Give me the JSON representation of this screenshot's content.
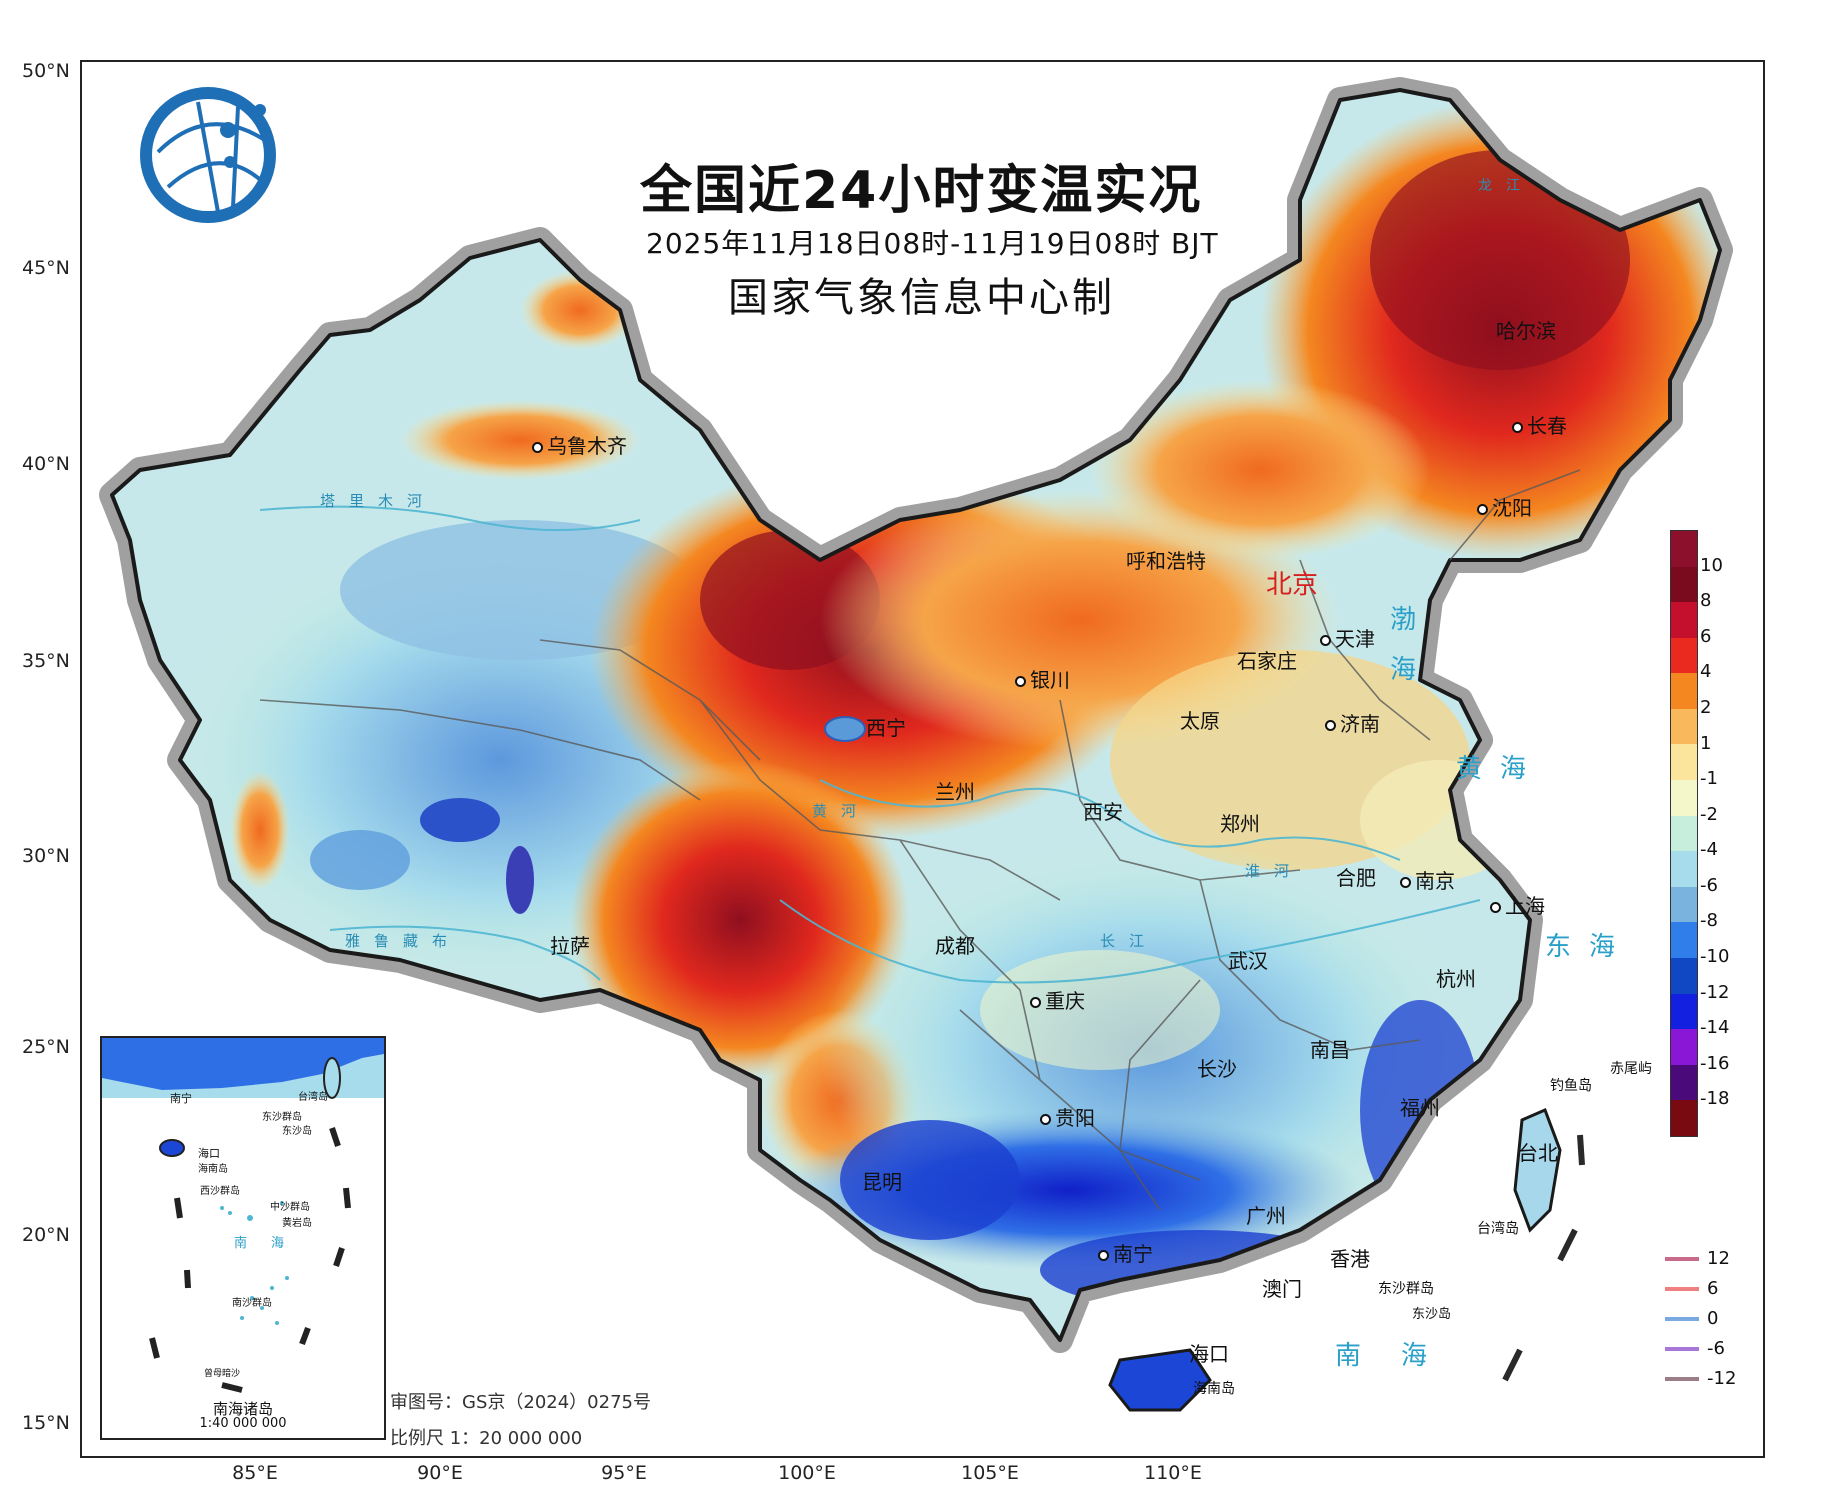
{
  "map": {
    "title": "全国近24小时变温实况",
    "subtitle": "2025年11月18日08时-11月19日08时 BJT",
    "producer": "国家气象信息中心制",
    "latitude_labels": [
      "50°N",
      "45°N",
      "40°N",
      "35°N",
      "30°N",
      "25°N",
      "20°N",
      "15°N"
    ],
    "longitude_labels": [
      "85°E",
      "90°E",
      "95°E",
      "100°E",
      "105°E",
      "110°E"
    ],
    "cities": [
      {
        "name": "乌鲁木齐"
      },
      {
        "name": "哈尔滨"
      },
      {
        "name": "长春"
      },
      {
        "name": "沈阳"
      },
      {
        "name": "呼和浩特"
      },
      {
        "name": "北京"
      },
      {
        "name": "天津"
      },
      {
        "name": "银川"
      },
      {
        "name": "石家庄"
      },
      {
        "name": "太原"
      },
      {
        "name": "济南"
      },
      {
        "name": "西宁"
      },
      {
        "name": "兰州"
      },
      {
        "name": "西安"
      },
      {
        "name": "郑州"
      },
      {
        "name": "合肥"
      },
      {
        "name": "南京"
      },
      {
        "name": "上海"
      },
      {
        "name": "拉萨"
      },
      {
        "name": "成都"
      },
      {
        "name": "武汉"
      },
      {
        "name": "杭州"
      },
      {
        "name": "重庆"
      },
      {
        "name": "长沙"
      },
      {
        "name": "南昌"
      },
      {
        "name": "贵阳"
      },
      {
        "name": "福州"
      },
      {
        "name": "台北"
      },
      {
        "name": "昆明"
      },
      {
        "name": "南宁"
      },
      {
        "name": "广州"
      },
      {
        "name": "香港"
      },
      {
        "name": "澳门"
      },
      {
        "name": "海口"
      }
    ],
    "sea_labels": [
      "渤海",
      "黄海",
      "东海",
      "南海"
    ],
    "island_labels": [
      "钓鱼岛",
      "赤尾屿",
      "台湾岛",
      "东沙群岛",
      "东沙岛",
      "海南岛"
    ],
    "river_labels": [
      "塔里木河",
      "雅鲁藏布",
      "黄河",
      "长江",
      "淮河",
      "龙江"
    ]
  },
  "legend": {
    "color_scale": [
      {
        "label": "10",
        "color": "#7a0a1e"
      },
      {
        "label": "8",
        "color": "#c4102c"
      },
      {
        "label": "6",
        "color": "#ea2a1e"
      },
      {
        "label": "4",
        "color": "#f48720"
      },
      {
        "label": "2",
        "color": "#f9b85c"
      },
      {
        "label": "1",
        "color": "#fbe49b"
      },
      {
        "label": "-1",
        "color": "#f4f7c9"
      },
      {
        "label": "-2",
        "color": "#c7eedd"
      },
      {
        "label": "-4",
        "color": "#a7dcec"
      },
      {
        "label": "-6",
        "color": "#7ab3dd"
      },
      {
        "label": "-8",
        "color": "#2f7ee9"
      },
      {
        "label": "-10",
        "color": "#1048c4"
      },
      {
        "label": "-12",
        "color": "#1320e0"
      },
      {
        "label": "-14",
        "color": "#8a17d6"
      },
      {
        "label": "-16",
        "color": "#4b0a7a"
      },
      {
        "label": "-18",
        "color": "#7a0a12"
      }
    ],
    "top_swatch_color": "#8c0f2c",
    "bottom_swatch_color": "#3a0808",
    "contour_lines": [
      {
        "label": "12",
        "color": "#c86a8a"
      },
      {
        "label": "6",
        "color": "#f08080"
      },
      {
        "label": "0",
        "color": "#7aa8e0"
      },
      {
        "label": "-6",
        "color": "#a876d8"
      },
      {
        "label": "-12",
        "color": "#9a7d86"
      }
    ]
  },
  "inset": {
    "title": "南海诸岛",
    "scale": "1:40 000 000",
    "labels": [
      "南宁",
      "海口",
      "海南岛",
      "西沙群岛",
      "中沙群岛",
      "黄岩岛",
      "南沙群岛",
      "曾母暗沙",
      "东沙群岛",
      "东沙岛",
      "台湾岛",
      "南海"
    ]
  },
  "footer": {
    "map_approval": "审图号：GS京（2024）0275号",
    "scale": "比例尺 1：20 000 000"
  },
  "colors": {
    "border": "#222222",
    "halo": "#9a9a9a",
    "sea_text": "#2aa0c9",
    "capital_text": "#d61f1f"
  }
}
